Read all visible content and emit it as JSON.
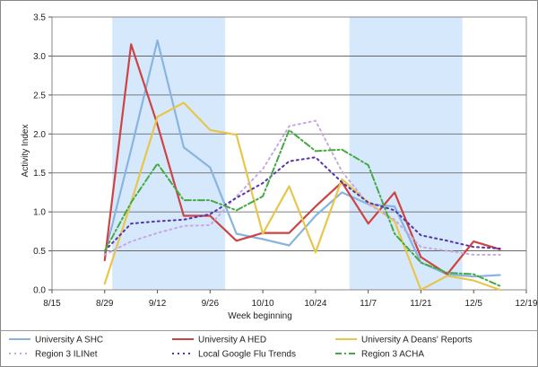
{
  "chart_data": {
    "type": "line",
    "title": "",
    "xlabel": "Week beginning",
    "ylabel": "Activity Index",
    "xlim": [
      "08/15",
      "12/19"
    ],
    "ylim": [
      0,
      3.5
    ],
    "x_ticks": [
      "8/15",
      "8/29",
      "9/12",
      "9/26",
      "10/10",
      "10/24",
      "11/7",
      "11/21",
      "12/5",
      "12/19"
    ],
    "y_ticks": [
      "0.0",
      "0.5",
      "1.0",
      "1.5",
      "2.0",
      "2.5",
      "3.0",
      "3.5"
    ],
    "grid": "horizontal",
    "shaded_periods": [
      {
        "start": "08/31",
        "end": "09/30",
        "color": "#d6e8fb"
      },
      {
        "start": "11/02",
        "end": "12/02",
        "color": "#d6e8fb"
      }
    ],
    "legend_position": "bottom",
    "series": [
      {
        "name": "University A SHC",
        "color": "#88b4e0",
        "style": "solid",
        "x": [
          "08/29",
          "09/05",
          "09/12",
          "09/19",
          "09/26",
          "10/03",
          "10/10",
          "10/17",
          "10/24",
          "10/31",
          "11/07",
          "11/14",
          "11/21",
          "11/28",
          "12/05",
          "12/12"
        ],
        "y": [
          0.45,
          1.8,
          3.2,
          1.83,
          1.57,
          0.72,
          0.65,
          0.57,
          0.95,
          1.25,
          1.1,
          1.07,
          0.35,
          0.2,
          0.17,
          0.19
        ]
      },
      {
        "name": "University A HED",
        "color": "#cc4444",
        "style": "solid",
        "x": [
          "08/29",
          "09/05",
          "09/12",
          "09/19",
          "09/26",
          "10/03",
          "10/10",
          "10/17",
          "10/24",
          "10/31",
          "11/07",
          "11/14",
          "11/21",
          "11/28",
          "12/05",
          "12/12"
        ],
        "y": [
          0.38,
          3.15,
          2.12,
          0.95,
          0.95,
          0.63,
          0.73,
          0.73,
          1.07,
          1.38,
          0.85,
          1.25,
          0.42,
          0.2,
          0.62,
          0.52
        ]
      },
      {
        "name": "University A Deans' Reports",
        "color": "#e8c64a",
        "style": "solid",
        "x": [
          "08/29",
          "09/05",
          "09/12",
          "09/19",
          "09/26",
          "10/03",
          "10/10",
          "10/17",
          "10/24",
          "10/31",
          "11/07",
          "11/14",
          "11/21",
          "11/28",
          "12/05",
          "12/12"
        ],
        "y": [
          0.08,
          1.12,
          2.22,
          2.4,
          2.05,
          1.99,
          0.72,
          1.33,
          0.48,
          1.42,
          1.12,
          0.88,
          0.0,
          0.18,
          0.12,
          0.0
        ]
      },
      {
        "name": "Region 3 ILINet",
        "color": "#c8a8e0",
        "style": "dotted",
        "x": [
          "08/29",
          "09/05",
          "09/12",
          "09/19",
          "09/26",
          "10/03",
          "10/10",
          "10/17",
          "10/24",
          "10/31",
          "11/07",
          "11/14",
          "11/21",
          "11/28",
          "12/05",
          "12/12"
        ],
        "y": [
          0.45,
          0.62,
          0.73,
          0.82,
          0.83,
          1.2,
          1.55,
          2.1,
          2.17,
          1.52,
          1.1,
          0.9,
          0.55,
          0.5,
          0.45,
          0.45
        ]
      },
      {
        "name": "Local Google Flu Trends",
        "color": "#5533aa",
        "style": "dotted",
        "x": [
          "08/29",
          "09/05",
          "09/12",
          "09/19",
          "09/26",
          "10/03",
          "10/10",
          "10/17",
          "10/24",
          "10/31",
          "11/07",
          "11/14",
          "11/21",
          "11/28",
          "12/05",
          "12/12"
        ],
        "y": [
          0.5,
          0.85,
          0.88,
          0.9,
          0.97,
          1.18,
          1.37,
          1.65,
          1.7,
          1.38,
          1.12,
          1.02,
          0.7,
          0.63,
          0.55,
          0.53
        ]
      },
      {
        "name": "Region 3 ACHA",
        "color": "#44aa44",
        "style": "dashdot",
        "x": [
          "08/29",
          "09/05",
          "09/12",
          "09/19",
          "09/26",
          "10/03",
          "10/10",
          "10/17",
          "10/24",
          "10/31",
          "11/07",
          "11/14",
          "11/21",
          "11/28",
          "12/05",
          "12/12"
        ],
        "y": [
          0.5,
          1.12,
          1.62,
          1.15,
          1.15,
          1.02,
          1.2,
          2.05,
          1.78,
          1.8,
          1.6,
          0.72,
          0.35,
          0.22,
          0.2,
          0.05
        ]
      }
    ]
  }
}
